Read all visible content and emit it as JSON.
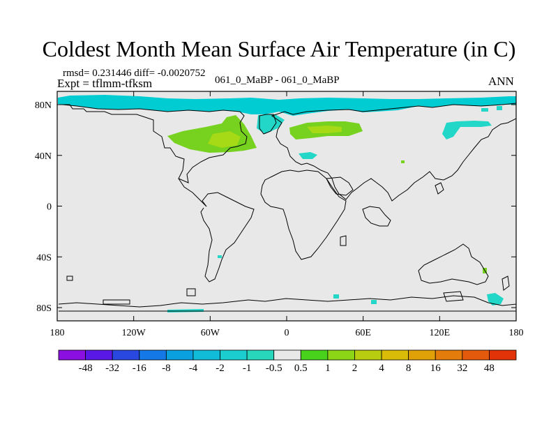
{
  "title": "Coldest Month Mean Surface Air Temperature (in C)",
  "stats": "rmsd= 0.231446 diff= -0.0020752",
  "experiment": "Expt = tflmm-tfksm",
  "case_label": "061_0_MaBP - 061_0_MaBP",
  "season": "ANN",
  "colors": {
    "land_fill": "#e8e8e8",
    "coast": "#000000",
    "cyan": "#00ccd2",
    "cyan_light": "#22d6c8",
    "green": "#77d11f",
    "green_light": "#a6d916"
  },
  "axes": {
    "lat_ticks": [
      {
        "lat": 80,
        "label": "80N"
      },
      {
        "lat": 40,
        "label": "40N"
      },
      {
        "lat": 0,
        "label": "0"
      },
      {
        "lat": -40,
        "label": "40S"
      },
      {
        "lat": -80,
        "label": "80S"
      }
    ],
    "lon_ticks": [
      {
        "lon": -180,
        "label": "180"
      },
      {
        "lon": -120,
        "label": "120W"
      },
      {
        "lon": -60,
        "label": "60W"
      },
      {
        "lon": 0,
        "label": "0"
      },
      {
        "lon": 60,
        "label": "60E"
      },
      {
        "lon": 120,
        "label": "120E"
      },
      {
        "lon": 180,
        "label": "180"
      }
    ]
  },
  "colorbar": {
    "colors": [
      "#8a0fe0",
      "#5a18e6",
      "#2848e0",
      "#1478e6",
      "#0aa0e0",
      "#10bcd8",
      "#1ccdd0",
      "#28d6bc",
      "#e8e8e8",
      "#48d21c",
      "#8cd416",
      "#b8cc10",
      "#d8bc08",
      "#e0a008",
      "#e47c0c",
      "#e45a0c",
      "#e23208"
    ],
    "labels": [
      "-48",
      "-32",
      "-16",
      "-8",
      "-4",
      "-2",
      "-1",
      "-0.5",
      "0.5",
      "1",
      "2",
      "4",
      "8",
      "16",
      "32",
      "48"
    ]
  }
}
